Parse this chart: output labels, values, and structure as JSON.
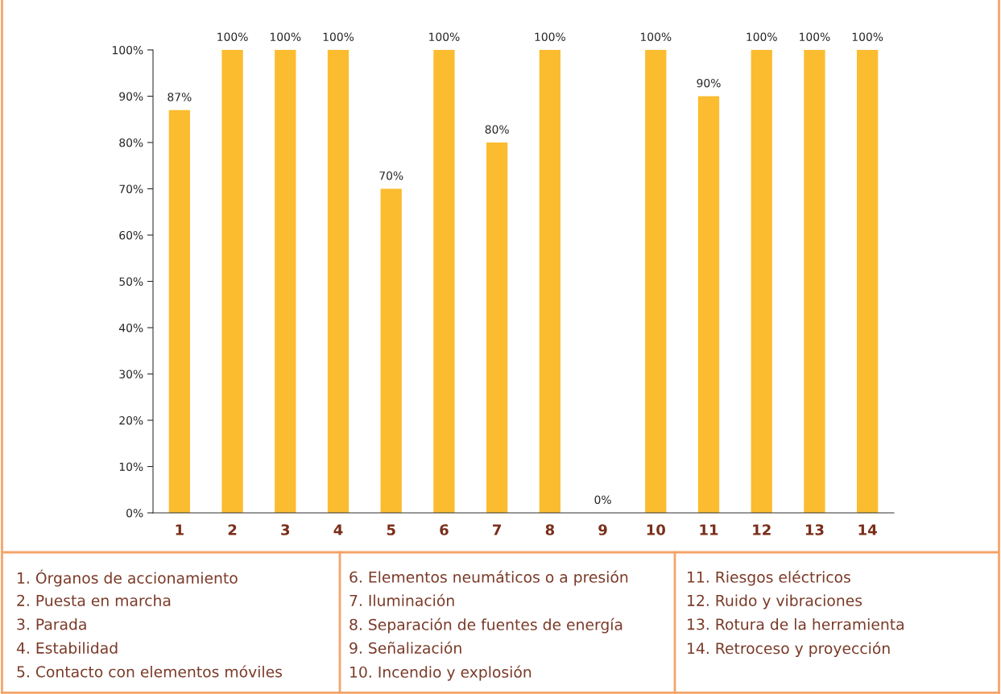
{
  "chart_data": {
    "type": "bar",
    "categories": [
      "1",
      "2",
      "3",
      "4",
      "5",
      "6",
      "7",
      "8",
      "9",
      "10",
      "11",
      "12",
      "13",
      "14"
    ],
    "values": [
      87,
      100,
      100,
      100,
      70,
      100,
      80,
      100,
      0,
      100,
      90,
      100,
      100,
      100
    ],
    "value_labels": [
      "87%",
      "100%",
      "100%",
      "100%",
      "70%",
      "100%",
      "80%",
      "100%",
      "0%",
      "100%",
      "90%",
      "100%",
      "100%",
      "100%"
    ],
    "color": "#fbbc2f",
    "ylim": [
      0,
      100
    ],
    "yticks": [
      {
        "value": 0,
        "label": "0%"
      },
      {
        "value": 10,
        "label": "10%"
      },
      {
        "value": 20,
        "label": "20%"
      },
      {
        "value": 30,
        "label": "30%"
      },
      {
        "value": 40,
        "label": "40%"
      },
      {
        "value": 50,
        "label": "50%"
      },
      {
        "value": 60,
        "label": "60%"
      },
      {
        "value": 70,
        "label": "70%"
      },
      {
        "value": 80,
        "label": "80%"
      },
      {
        "value": 90,
        "label": "90%"
      },
      {
        "value": 100,
        "label": "100%"
      }
    ],
    "grid": false,
    "annotations": [
      "1. Órganos de accionamiento",
      "2. Puesta en marcha",
      "3. Parada",
      "4. Estabilidad",
      "5. Contacto con elementos móviles",
      "6. Elementos neumáticos o a presión",
      "7. Iluminación",
      "8. Separación de fuentes de energía",
      "9. Señalización",
      "10. Incendio y explosión",
      "11. Riesgos eléctricos",
      "12. Ruido y vibraciones",
      "13. Rotura de la herramienta",
      "14. Retroceso y proyección"
    ]
  }
}
